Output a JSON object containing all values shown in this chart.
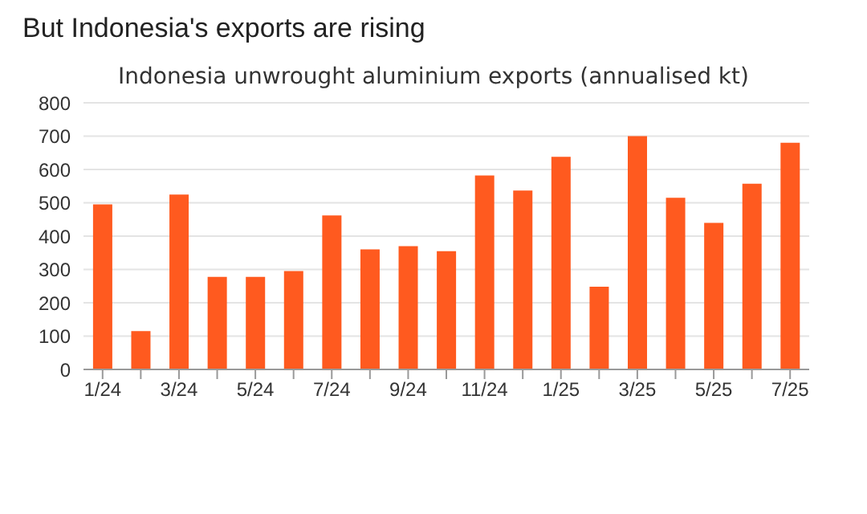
{
  "chart_data": {
    "type": "bar",
    "title": "But Indonesia's exports are rising",
    "subtitle": "Indonesia unwrought aluminium exports (annualised kt)",
    "categories": [
      "1/24",
      null,
      "3/24",
      null,
      "5/24",
      null,
      "7/24",
      null,
      "9/24",
      null,
      "11/24",
      null,
      "1/25",
      null,
      "3/25",
      null,
      "5/25",
      null,
      "7/25"
    ],
    "values": [
      495,
      115,
      525,
      278,
      278,
      295,
      462,
      360,
      370,
      355,
      582,
      537,
      638,
      248,
      700,
      515,
      440,
      557,
      680
    ],
    "color": "#ff5a1f",
    "ylim": [
      0,
      800
    ],
    "yticks": [
      0,
      100,
      200,
      300,
      400,
      500,
      600,
      700,
      800
    ],
    "grid": "y"
  }
}
